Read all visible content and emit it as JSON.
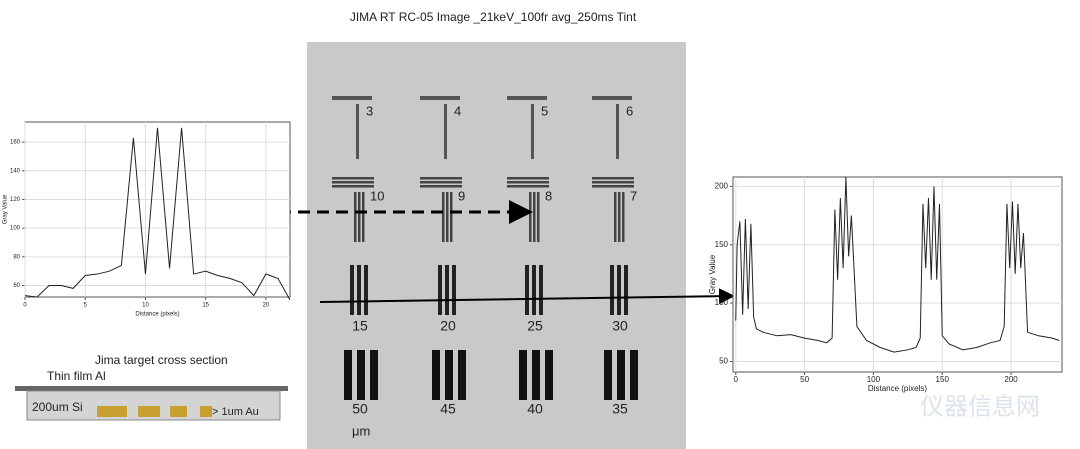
{
  "title": "JIMA RT RC-05 Image _21keV_100fr avg_250ms Tint",
  "image_labels": [
    "3",
    "4",
    "5",
    "6",
    "10",
    "9",
    "8",
    "7",
    "15",
    "20",
    "25",
    "30",
    "50",
    "45",
    "40",
    "35"
  ],
  "image_unit": "μm",
  "cross_section": {
    "title": "Jima target cross section",
    "top_layer": "Thin film Al",
    "substrate": "200um Si",
    "pattern": "> 1um Au"
  },
  "watermark": "仪器信息网",
  "chart_data": [
    {
      "type": "line",
      "xlabel": "Distance (pixels)",
      "ylabel": "Gray Value",
      "color": "#222222",
      "grid": true,
      "x": [
        0,
        1,
        2,
        3,
        4,
        5,
        6,
        7,
        8,
        9,
        10,
        11,
        12,
        13,
        14,
        15,
        16,
        17,
        18,
        19,
        20,
        21,
        22
      ],
      "values": [
        53,
        52,
        60,
        60,
        58,
        67,
        68,
        70,
        74,
        163,
        68,
        170,
        72,
        170,
        68,
        70,
        67,
        65,
        62,
        53,
        68,
        65,
        50
      ],
      "xlim": [
        0,
        22
      ],
      "xticks": [
        0,
        5,
        10,
        15,
        20
      ],
      "ylim": [
        52,
        174
      ],
      "yticks": [
        60,
        80,
        100,
        120,
        140,
        160
      ]
    },
    {
      "type": "line",
      "xlabel": "Distance (pixels)",
      "ylabel": "Gray Value",
      "color": "#222222",
      "grid": true,
      "x": [
        0,
        1,
        3,
        5,
        7,
        9,
        11,
        13,
        15,
        20,
        30,
        40,
        50,
        60,
        66,
        70,
        72,
        74,
        76,
        78,
        80,
        82,
        84,
        88,
        95,
        105,
        115,
        125,
        131,
        134,
        136,
        138,
        140,
        142,
        144,
        146,
        148,
        150,
        155,
        165,
        175,
        185,
        192,
        195,
        197,
        199,
        201,
        203,
        205,
        207,
        209,
        212,
        220,
        230,
        235
      ],
      "values": [
        85,
        150,
        170,
        90,
        172,
        95,
        168,
        88,
        78,
        75,
        72,
        73,
        70,
        68,
        66,
        70,
        180,
        120,
        190,
        130,
        208,
        140,
        175,
        80,
        68,
        62,
        58,
        60,
        62,
        70,
        185,
        130,
        190,
        120,
        200,
        120,
        185,
        72,
        65,
        60,
        62,
        66,
        68,
        80,
        185,
        130,
        187,
        125,
        185,
        130,
        160,
        75,
        72,
        70,
        68
      ],
      "xlim": [
        -2,
        237
      ],
      "xticks": [
        0,
        50,
        100,
        150,
        200
      ],
      "ylim": [
        41,
        208
      ],
      "yticks": [
        50,
        100,
        150,
        200
      ]
    }
  ]
}
